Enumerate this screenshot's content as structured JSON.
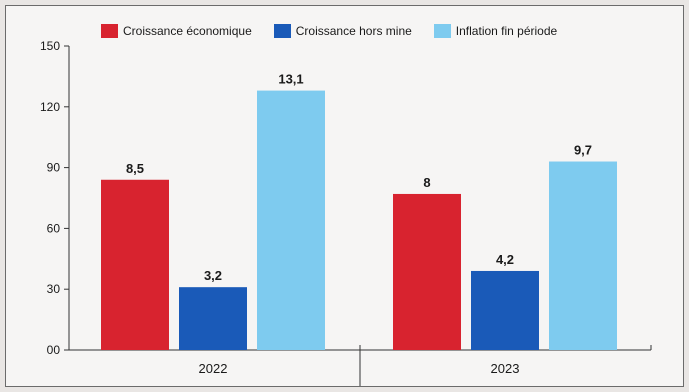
{
  "chart_data": {
    "type": "bar",
    "categories": [
      "2022",
      "2023"
    ],
    "series": [
      {
        "name": "Croissance économique",
        "color": "#d8232f",
        "values": [
          84,
          77
        ],
        "labels": [
          "8,5",
          "8"
        ]
      },
      {
        "name": "Croissance hors mine",
        "color": "#1a5ab8",
        "values": [
          31,
          39
        ],
        "labels": [
          "3,2",
          "4,2"
        ]
      },
      {
        "name": "Inflation fin période",
        "color": "#7ecbef",
        "values": [
          128,
          93
        ],
        "labels": [
          "13,1",
          "9,7"
        ]
      }
    ],
    "yticks": [
      "00",
      "30",
      "60",
      "90",
      "120",
      "150"
    ],
    "ylim": [
      0,
      150
    ],
    "grid": false,
    "legend_position": "top"
  }
}
